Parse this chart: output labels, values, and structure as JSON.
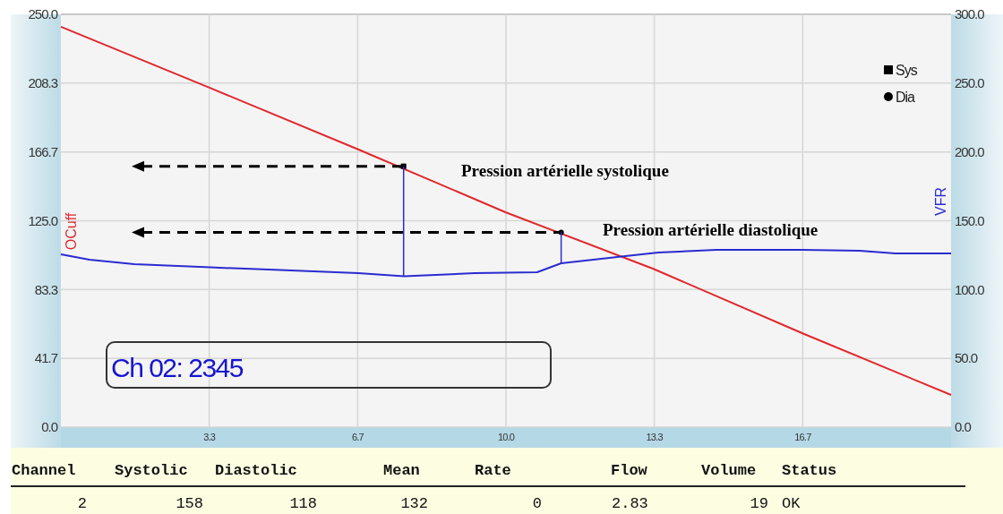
{
  "chart_data": {
    "type": "line",
    "ylabel": "OCuff",
    "y2label": "VFR",
    "xlim": [
      0,
      20
    ],
    "xticks": [
      {
        "value": 3.333,
        "label": "3.3"
      },
      {
        "value": 6.667,
        "label": "6.7"
      },
      {
        "value": 10,
        "label": "10.0"
      },
      {
        "value": 13.333,
        "label": "13.3"
      },
      {
        "value": 16.667,
        "label": "16.7"
      }
    ],
    "ylim": [
      0,
      250
    ],
    "yticks": [
      {
        "value": 0,
        "label": "0.0"
      },
      {
        "value": 41.667,
        "label": "41.7"
      },
      {
        "value": 83.333,
        "label": "83.3"
      },
      {
        "value": 125,
        "label": "125.0"
      },
      {
        "value": 166.667,
        "label": "166.7"
      },
      {
        "value": 208.333,
        "label": "208.3"
      },
      {
        "value": 250,
        "label": "250.0"
      }
    ],
    "y2lim": [
      0,
      300
    ],
    "y2ticks": [
      {
        "value": 0,
        "label": "0.0"
      },
      {
        "value": 50,
        "label": "50.0"
      },
      {
        "value": 100,
        "label": "100.0"
      },
      {
        "value": 150,
        "label": "150.0"
      },
      {
        "value": 200,
        "label": "200.0"
      },
      {
        "value": 250,
        "label": "250.0"
      },
      {
        "value": 300,
        "label": "300.0"
      }
    ],
    "grid": true,
    "legend": "top right",
    "series": [
      {
        "color": "#e0282e",
        "x": [
          0,
          3.3,
          6.7,
          10,
          13.3,
          16.7,
          20
        ],
        "values": [
          242.5,
          206,
          168,
          130,
          96,
          56.4,
          19.5
        ]
      },
      {
        "axis": "y2",
        "color": "#2b2bd0",
        "x": [
          0,
          0.64,
          1.65,
          3.36,
          4.67,
          6.68,
          7.71,
          9.3,
          10.7,
          11.24,
          12.5,
          13.42,
          14.73,
          16.66,
          17.94,
          18.75,
          20
        ],
        "values": [
          125.6,
          121.7,
          118.4,
          116.1,
          114.5,
          111.9,
          109.6,
          111.9,
          112.6,
          119.1,
          123.6,
          126.9,
          128.8,
          128.8,
          128.2,
          126.2,
          126.2
        ]
      },
      {
        "type": "scatter",
        "name": "Sys",
        "color": "#000000",
        "marker": "square",
        "x": [
          7.7
        ],
        "values": [
          158
        ]
      },
      {
        "type": "scatter",
        "name": "Dia",
        "color": "#000000",
        "marker": "circle",
        "x": [
          11.24
        ],
        "values": [
          118
        ]
      }
    ],
    "annotations": [
      "Ch 02: 2345",
      "Pression artérielle systolique",
      "Pression artérielle diastolique",
      "Channel",
      "Systolic",
      "Diastolic",
      "Mean",
      "Rate",
      "Flow",
      "Volume",
      "Status",
      "2",
      "158",
      "118",
      "132",
      "0",
      "2.83",
      "19",
      "OK"
    ]
  }
}
